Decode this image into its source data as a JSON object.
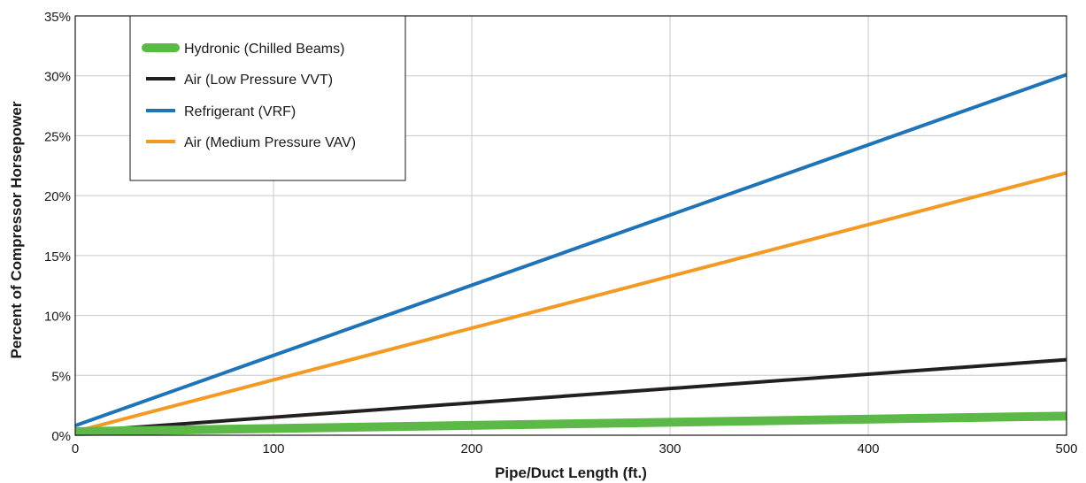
{
  "chart_data": {
    "type": "line",
    "xlabel": "Pipe/Duct Length (ft.)",
    "ylabel": "Percent of Compressor Horsepower",
    "xlim": [
      0,
      500
    ],
    "ylim": [
      0,
      35
    ],
    "x_ticks": [
      0,
      100,
      200,
      300,
      400,
      500
    ],
    "x_tick_labels": [
      "0",
      "100",
      "200",
      "300",
      "400",
      "500"
    ],
    "y_ticks": [
      0,
      5,
      10,
      15,
      20,
      25,
      30,
      35
    ],
    "y_tick_labels": [
      "0%",
      "5%",
      "10%",
      "15%",
      "20%",
      "25%",
      "30%",
      "35%"
    ],
    "grid": true,
    "legend_position": "top-left",
    "series": [
      {
        "name": "Hydronic (Chilled Beams)",
        "color": "#5cb947",
        "x": [
          0,
          500
        ],
        "y": [
          0.3,
          1.6
        ]
      },
      {
        "name": "Air (Low Pressure VVT)",
        "color": "#231f20",
        "x": [
          0,
          500
        ],
        "y": [
          0.3,
          6.3
        ]
      },
      {
        "name": "Refrigerant (VRF)",
        "color": "#1f73b7",
        "x": [
          0,
          500
        ],
        "y": [
          0.8,
          30.1
        ]
      },
      {
        "name": "Air (Medium Pressure VAV)",
        "color": "#f39a25",
        "x": [
          0,
          500
        ],
        "y": [
          0.3,
          21.9
        ]
      }
    ]
  }
}
